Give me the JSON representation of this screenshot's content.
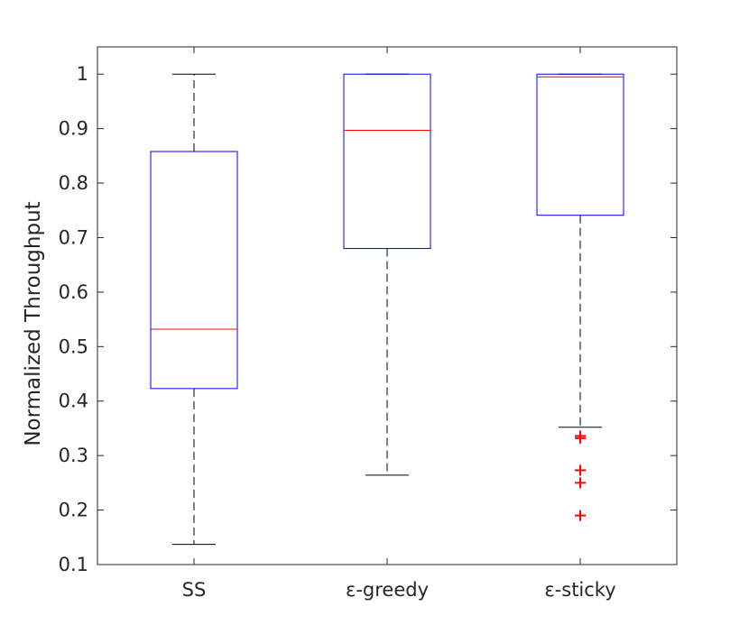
{
  "chart_data": {
    "type": "boxplot",
    "title": "",
    "xlabel": "",
    "ylabel": "Normalized Throughput",
    "ylim": [
      0.1,
      1.05
    ],
    "yticks": [
      0.1,
      0.2,
      0.3,
      0.4,
      0.5,
      0.6,
      0.7,
      0.8,
      0.9,
      1
    ],
    "ytick_labels": [
      "0.1",
      "0.2",
      "0.3",
      "0.4",
      "0.5",
      "0.6",
      "0.7",
      "0.8",
      "0.9",
      "1"
    ],
    "categories": [
      "SS",
      "ε-greedy",
      "ε-sticky"
    ],
    "boxes": [
      {
        "name": "SS",
        "whisker_low": 0.137,
        "q1": 0.423,
        "median": 0.532,
        "q3": 0.858,
        "whisker_high": 1.0,
        "outliers": []
      },
      {
        "name": "ε-greedy",
        "whisker_low": 0.264,
        "q1": 0.68,
        "median": 0.897,
        "q3": 1.0,
        "whisker_high": 1.0,
        "outliers": []
      },
      {
        "name": "ε-sticky",
        "whisker_low": 0.352,
        "q1": 0.741,
        "median": 0.995,
        "q3": 1.0,
        "whisker_high": 1.0,
        "outliers": [
          0.336,
          0.332,
          0.273,
          0.25,
          0.19
        ]
      }
    ],
    "colors": {
      "box": "#0000ff",
      "median": "#ff0000",
      "whisker": "#000000",
      "outlier": "#ff0000",
      "axis": "#262626"
    }
  }
}
